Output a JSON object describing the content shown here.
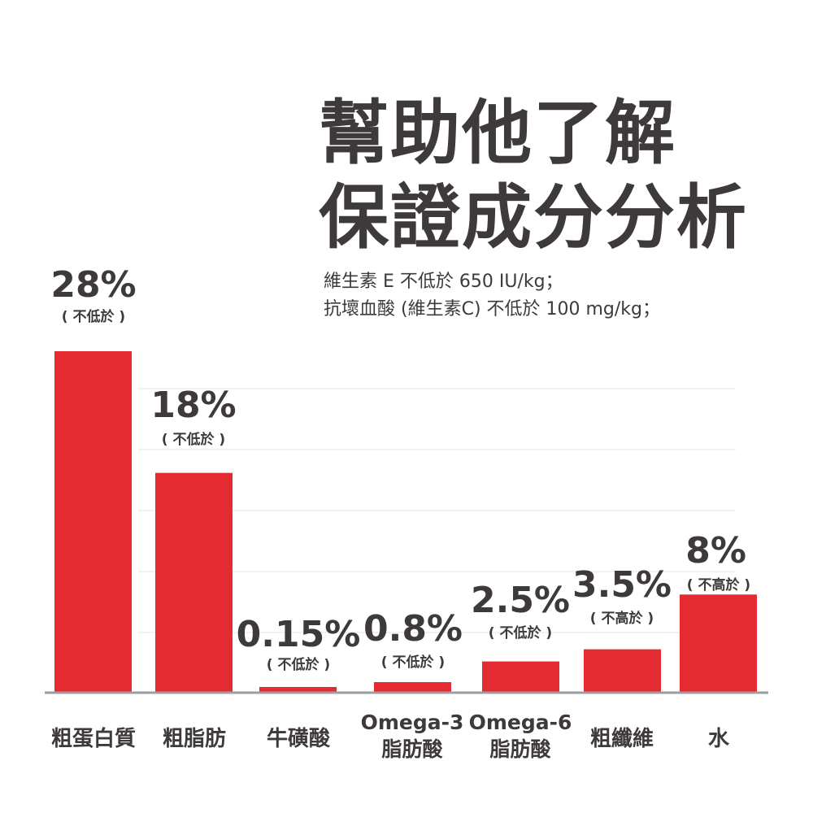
{
  "title": [
    "幫助他了解",
    "保證成分分析"
  ],
  "notes": [
    "維生素 E 不低於 650 IU/kg；",
    "抗壞血酸 (維生素C) 不低於 100 mg/kg；"
  ],
  "colors": {
    "bar": "#e52b32",
    "text": "#3d3a39",
    "axis": "#9e9e9e",
    "grid": "#f2f2f2"
  },
  "chart_data": {
    "type": "bar",
    "categories": [
      [
        "粗蛋白質"
      ],
      [
        "粗脂肪"
      ],
      [
        "牛磺酸"
      ],
      [
        "Omega-3",
        "脂肪酸"
      ],
      [
        "Omega-6",
        "脂肪酸"
      ],
      [
        "粗纖維"
      ],
      [
        "水"
      ]
    ],
    "values": [
      28,
      18,
      0.15,
      0.8,
      2.5,
      3.5,
      8
    ],
    "data_labels": [
      "28%",
      "18%",
      "0.15%",
      "0.8%",
      "2.5%",
      "3.5%",
      "8%"
    ],
    "qualifiers": [
      "( 不低於 )",
      "( 不低於 )",
      "( 不低於 )",
      "( 不低於 )",
      "( 不低於 )",
      "( 不高於 )",
      "( 不高於 )"
    ],
    "ylim": [
      0,
      28
    ],
    "grid": true
  }
}
